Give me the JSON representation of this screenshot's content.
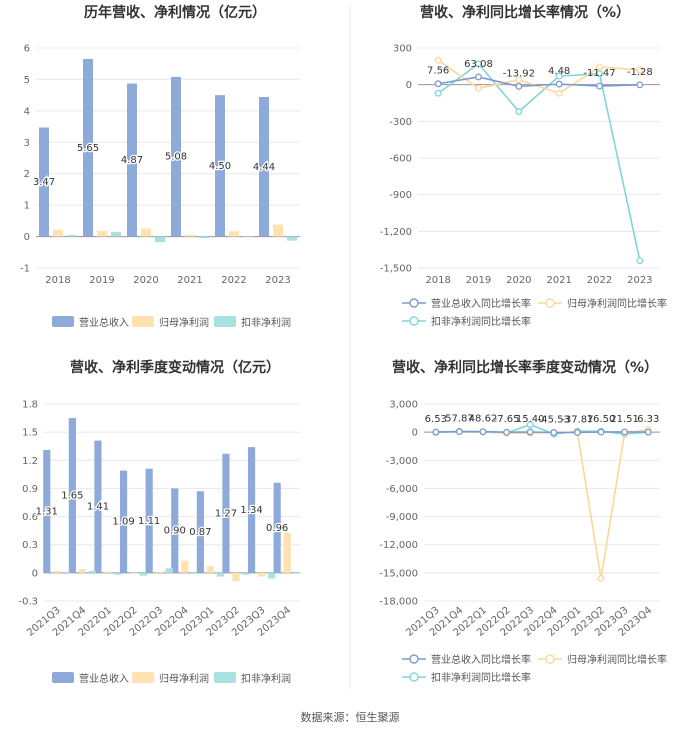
{
  "source": "数据来源：恒生聚源",
  "colors": {
    "revenue": "#8eaadb",
    "netprofit": "#ffe2b0",
    "deducted": "#a9e1e1",
    "grid": "#e8e8e8",
    "axis": "#999999"
  },
  "chart_data": [
    {
      "type": "bar",
      "title": "历年营收、净利情况（亿元）",
      "categories": [
        "2018",
        "2019",
        "2020",
        "2021",
        "2022",
        "2023"
      ],
      "ylim": [
        -1,
        6
      ],
      "yticks": [
        -1,
        0,
        1,
        2,
        3,
        4,
        5,
        6
      ],
      "series": [
        {
          "name": "营业总收入",
          "values": [
            3.47,
            5.65,
            4.87,
            5.08,
            4.5,
            4.44
          ],
          "labels": [
            "3.47",
            "5.65",
            "4.87",
            "5.08",
            "4.50",
            "4.44"
          ]
        },
        {
          "name": "归母净利润",
          "values": [
            0.22,
            0.18,
            0.26,
            0.05,
            0.17,
            0.38
          ]
        },
        {
          "name": "扣非净利润",
          "values": [
            0.05,
            0.15,
            -0.18,
            -0.05,
            0.02,
            -0.13
          ]
        }
      ],
      "legend_position": "bottom"
    },
    {
      "type": "line",
      "title": "营收、净利同比增长率情况（%）",
      "categories": [
        "2018",
        "2019",
        "2020",
        "2021",
        "2022",
        "2023"
      ],
      "ylim": [
        -1500,
        300
      ],
      "yticks": [
        300,
        0,
        -300,
        -600,
        -900,
        -1200,
        -1500
      ],
      "ytick_labels": [
        "300",
        "0",
        "-300",
        "-600",
        "-900",
        "-1,200",
        "-1,500"
      ],
      "series": [
        {
          "name": "营业总收入同比增长率",
          "values": [
            7.56,
            63.08,
            -13.92,
            4.48,
            -11.47,
            -1.28
          ],
          "labels": [
            "7.56",
            "63.08",
            "-13.92",
            "4.48",
            "-11.47",
            "-1.28"
          ]
        },
        {
          "name": "归母净利润同比增长率",
          "values": [
            200,
            -30,
            40,
            -70,
            145,
            120
          ]
        },
        {
          "name": "扣非净利润同比增长率",
          "values": [
            -70,
            170,
            -220,
            70,
            90,
            -1440
          ]
        }
      ],
      "legend_position": "bottom"
    },
    {
      "type": "bar",
      "title": "营收、净利季度变动情况（亿元）",
      "categories": [
        "2021Q3",
        "2021Q4",
        "2022Q1",
        "2022Q2",
        "2022Q3",
        "2022Q4",
        "2023Q1",
        "2023Q2",
        "2023Q3",
        "2023Q4"
      ],
      "ylim": [
        -0.3,
        1.8
      ],
      "yticks": [
        -0.3,
        0,
        0.3,
        0.6,
        0.9,
        1.2,
        1.5,
        1.8
      ],
      "series": [
        {
          "name": "营业总收入",
          "values": [
            1.31,
            1.65,
            1.41,
            1.09,
            1.11,
            0.9,
            0.87,
            1.27,
            1.34,
            0.96
          ],
          "labels": [
            "1.31",
            "1.65",
            "1.41",
            "1.09",
            "1.11",
            "0.90",
            "0.87",
            "1.27",
            "1.34",
            "0.96"
          ]
        },
        {
          "name": "归母净利润",
          "values": [
            0.02,
            0.04,
            0.01,
            0.0,
            0.01,
            0.13,
            0.07,
            -0.09,
            -0.04,
            0.43
          ]
        },
        {
          "name": "扣非净利润",
          "values": [
            0.01,
            0.02,
            -0.02,
            -0.03,
            0.05,
            -0.01,
            -0.04,
            -0.02,
            -0.06,
            0.0
          ]
        }
      ],
      "legend_position": "bottom"
    },
    {
      "type": "line",
      "title": "营收、净利同比增长率季度变动情况（%）",
      "categories": [
        "2021Q3",
        "2021Q4",
        "2022Q1",
        "2022Q2",
        "2022Q3",
        "2022Q4",
        "2023Q1",
        "2023Q2",
        "2023Q3",
        "2023Q4"
      ],
      "ylim": [
        -18000,
        3000
      ],
      "yticks": [
        3000,
        0,
        -3000,
        -6000,
        -9000,
        -12000,
        -15000,
        -18000
      ],
      "ytick_labels": [
        "3,000",
        "0",
        "-3,000",
        "-6,000",
        "-9,000",
        "-12,000",
        "-15,000",
        "-18,000"
      ],
      "series": [
        {
          "name": "营业总收入同比增长率",
          "values": [
            6.53,
            57.87,
            48.62,
            -7.65,
            15.4,
            -45.53,
            -37.87,
            16.5,
            21.51,
            6.33
          ],
          "labels": [
            "6.53",
            "57.87",
            "48.62",
            "-7.65",
            "15.40",
            "-45.53",
            "-37.87",
            "16.50",
            "21.51",
            "6.33"
          ]
        },
        {
          "name": "归母净利润同比增长率",
          "values": [
            0,
            80,
            50,
            -100,
            -100,
            0,
            0,
            -15600,
            -100,
            250
          ]
        },
        {
          "name": "扣非净利润同比增长率",
          "values": [
            -50,
            100,
            20,
            -100,
            800,
            -200,
            100,
            100,
            -200,
            0
          ]
        }
      ],
      "legend_position": "bottom"
    }
  ]
}
